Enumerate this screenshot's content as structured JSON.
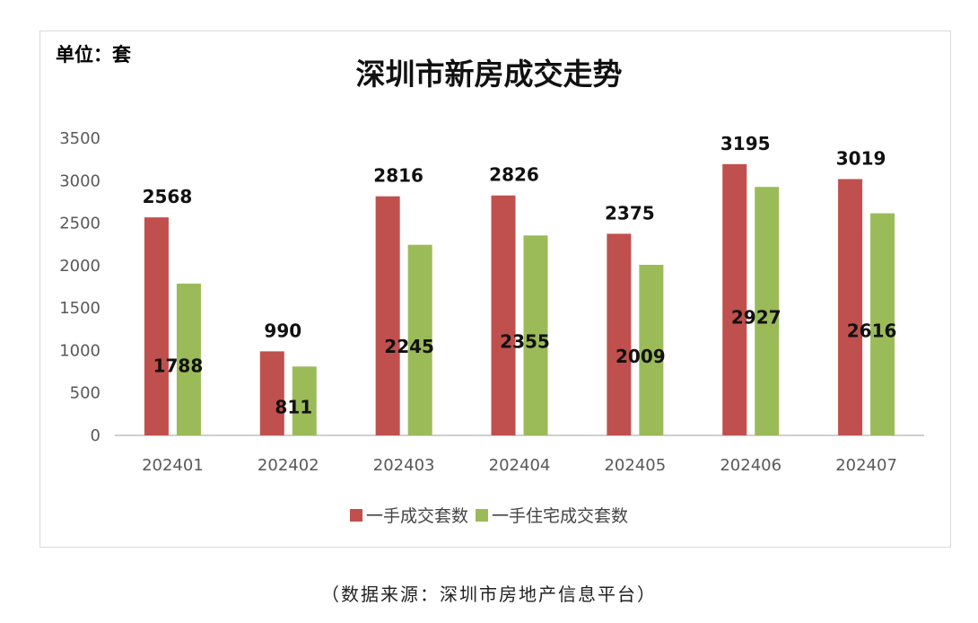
{
  "chart_data": {
    "type": "bar",
    "title": "深圳市新房成交走势",
    "unit_label": "单位：套",
    "categories": [
      "202401",
      "202402",
      "202403",
      "202404",
      "202405",
      "202406",
      "202407"
    ],
    "series": [
      {
        "name": "一手成交套数",
        "color": "#c0504d",
        "values": [
          2568,
          990,
          2816,
          2826,
          2375,
          3195,
          3019
        ]
      },
      {
        "name": "一手住宅成交套数",
        "color": "#9bbb59",
        "values": [
          1788,
          811,
          2245,
          2355,
          2009,
          2927,
          2616
        ]
      }
    ],
    "ylim": [
      0,
      3500
    ],
    "yticks": [
      0,
      500,
      1000,
      1500,
      2000,
      2500,
      3000,
      3500
    ],
    "grid": false,
    "legend_position": "bottom"
  },
  "source_note": "（数据来源：深圳市房地产信息平台）"
}
